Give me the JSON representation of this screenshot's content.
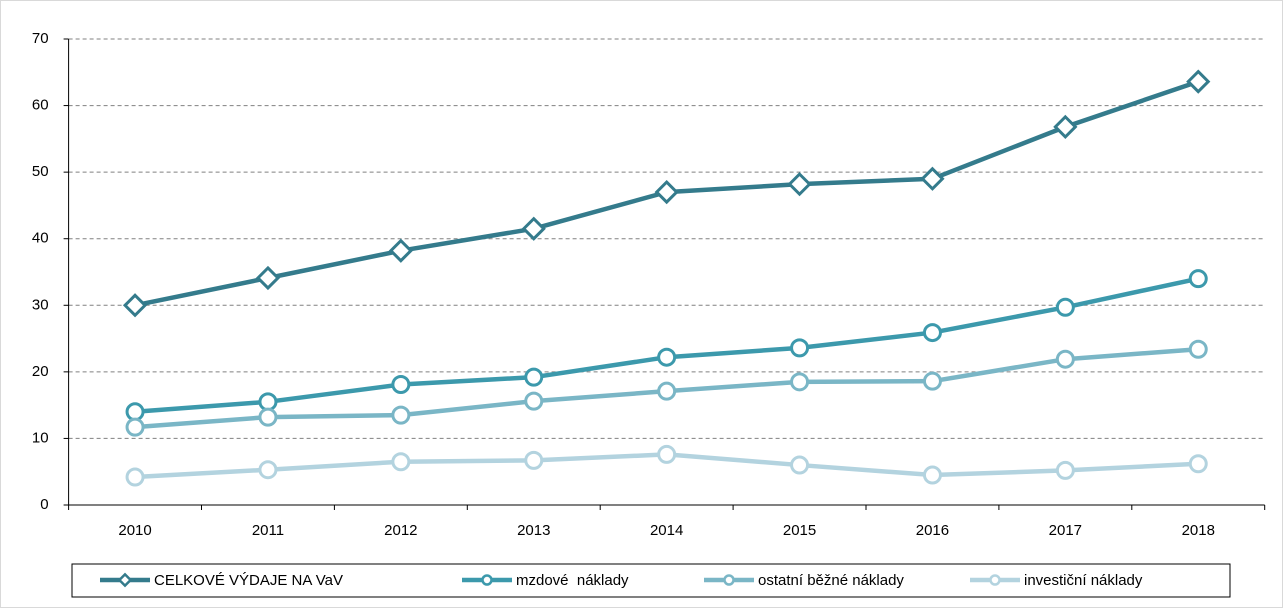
{
  "chart_data": {
    "type": "line",
    "categories": [
      "2010",
      "2011",
      "2012",
      "2013",
      "2014",
      "2015",
      "2016",
      "2017",
      "2018"
    ],
    "series": [
      {
        "name": "CELKOVÉ VÝDAJE NA VaV",
        "color": "#347b8c",
        "marker": "diamond",
        "values": [
          30.0,
          34.1,
          38.2,
          41.5,
          47.0,
          48.2,
          49.0,
          56.8,
          63.6
        ]
      },
      {
        "name": "mzdové  náklady",
        "color": "#3c99ac",
        "marker": "circle",
        "values": [
          14.0,
          15.5,
          18.1,
          19.2,
          22.2,
          23.6,
          25.9,
          29.7,
          34.0
        ]
      },
      {
        "name": "ostatní běžné náklady",
        "color": "#7ab6c6",
        "marker": "circle",
        "values": [
          11.7,
          13.2,
          13.5,
          15.6,
          17.1,
          18.5,
          18.6,
          21.9,
          23.4
        ]
      },
      {
        "name": "investiční náklady",
        "color": "#b3d3df",
        "marker": "circle",
        "values": [
          4.2,
          5.3,
          6.5,
          6.7,
          7.6,
          6.0,
          4.5,
          5.2,
          6.2
        ]
      }
    ],
    "ylim": [
      0,
      70
    ],
    "yticks": [
      0,
      10,
      20,
      30,
      40,
      50,
      60,
      70
    ],
    "grid": true,
    "legend": "bottom"
  }
}
